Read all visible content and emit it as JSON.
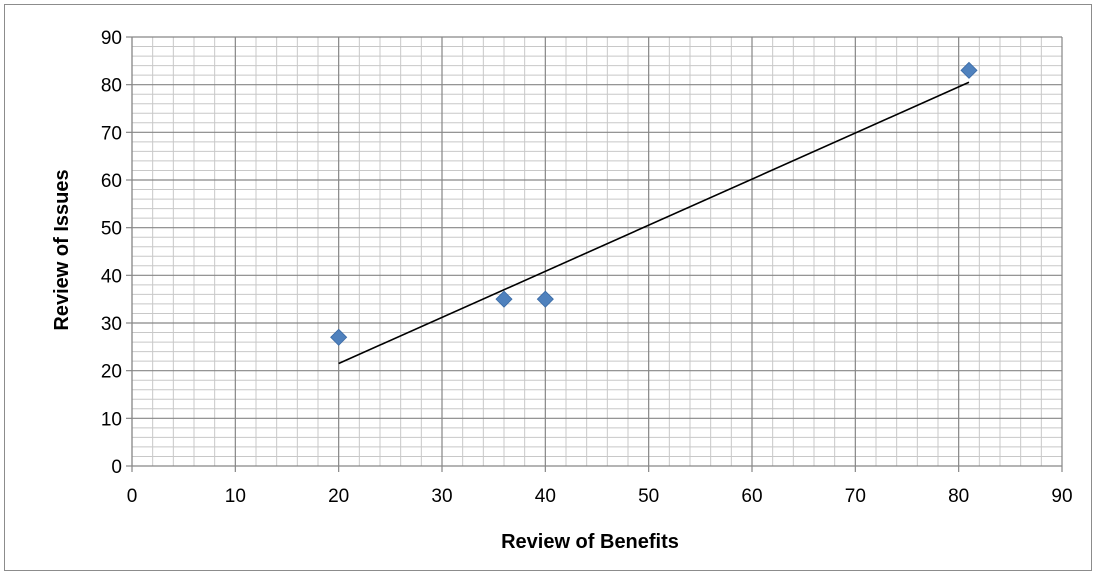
{
  "chart_data": {
    "type": "scatter",
    "title": "",
    "xlabel": "Review of Benefits",
    "ylabel": "Review of Issues",
    "xlim": [
      0,
      90
    ],
    "ylim": [
      0,
      90
    ],
    "x_ticks": [
      "0",
      "10",
      "20",
      "30",
      "40",
      "50",
      "60",
      "70",
      "80",
      "90"
    ],
    "y_ticks": [
      "0",
      "10",
      "20",
      "30",
      "40",
      "50",
      "60",
      "70",
      "80",
      "90"
    ],
    "grid": {
      "major": true,
      "minor": true
    },
    "legend": "none",
    "series": [
      {
        "x": [
          20,
          36,
          40,
          81
        ],
        "y": [
          27,
          35,
          35,
          83
        ],
        "marker": "diamond",
        "color": "#4f81bd"
      }
    ],
    "trendline": {
      "type": "linear",
      "x": [
        20,
        81
      ],
      "y": [
        21.5,
        80.5
      ],
      "color": "#000000"
    }
  }
}
